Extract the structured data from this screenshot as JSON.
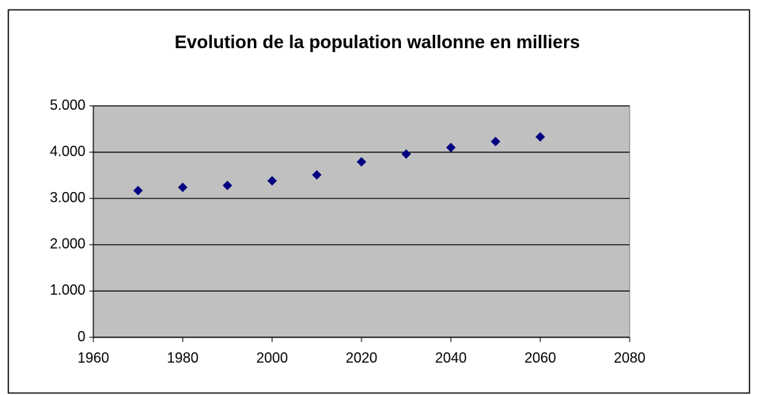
{
  "chart_data": {
    "type": "scatter",
    "title": "Evolution de la population wallonne en milliers",
    "x": [
      1970,
      1980,
      1990,
      2000,
      2010,
      2020,
      2030,
      2040,
      2050,
      2060
    ],
    "series": [
      {
        "color": "#000080",
        "values": [
          3170,
          3240,
          3280,
          3380,
          3510,
          3790,
          3960,
          4100,
          4230,
          4330
        ]
      }
    ],
    "xlim": [
      1960,
      2080
    ],
    "xticks": [
      1960,
      1980,
      2000,
      2020,
      2040,
      2060,
      2080
    ],
    "ylim": [
      0,
      5000
    ],
    "yticks": [
      0,
      {
        "value": 1000,
        "label": "1.000"
      },
      {
        "value": 2000,
        "label": "2.000"
      },
      {
        "value": 3000,
        "label": "3.000"
      },
      {
        "value": 4000,
        "label": "4.000"
      },
      {
        "value": 5000,
        "label": "5.000"
      }
    ],
    "grid": true
  }
}
